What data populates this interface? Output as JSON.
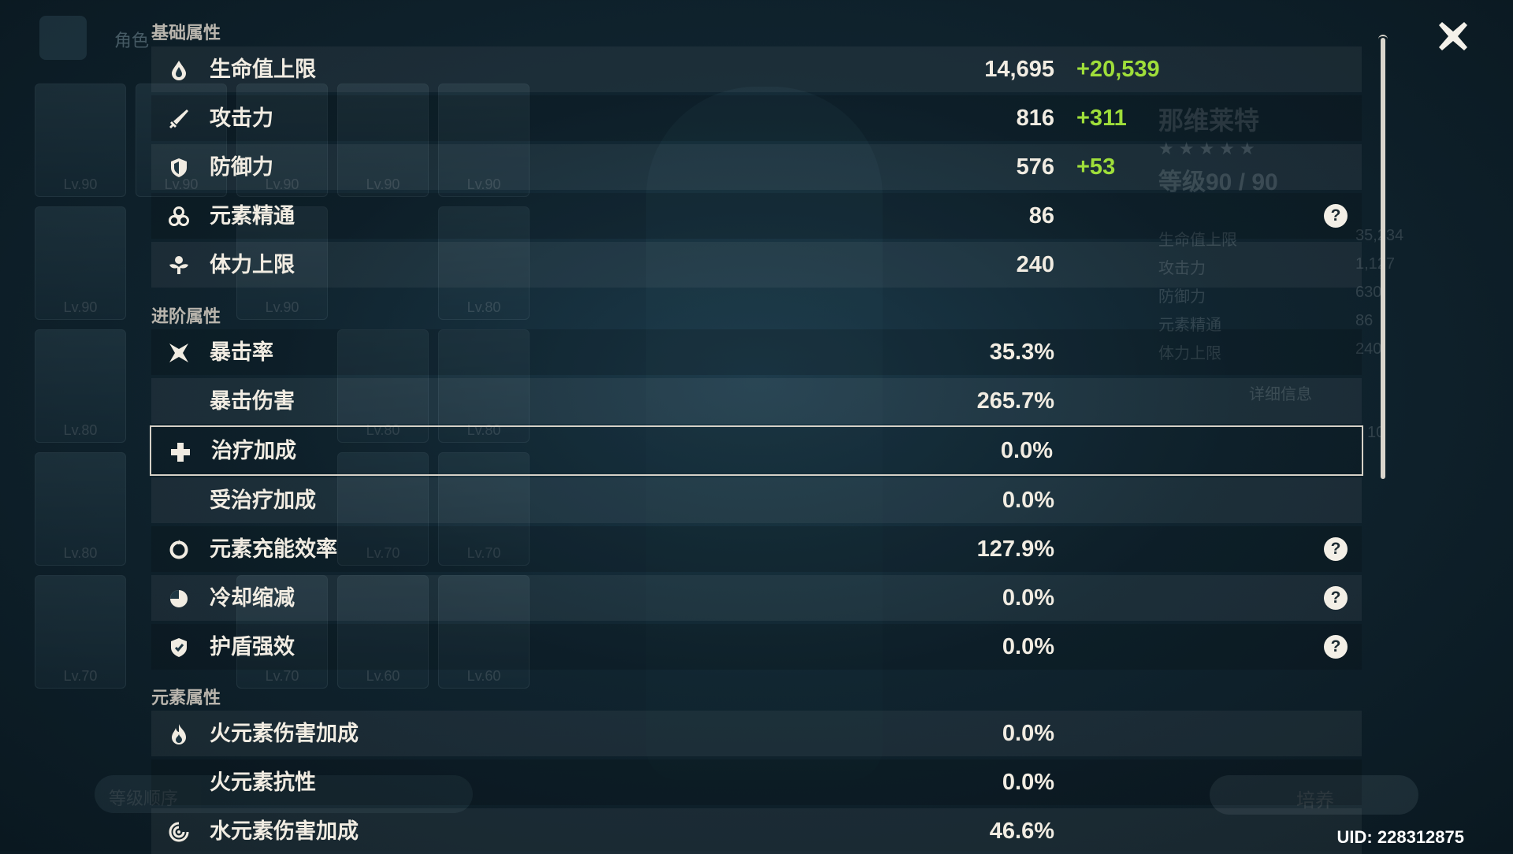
{
  "header": {
    "faded_tab": "角色"
  },
  "background": {
    "character_name": "那维莱特",
    "stars": "★★★★★",
    "level_text": "等级90 / 90",
    "stat_labels": [
      "生命值上限",
      "攻击力",
      "防御力",
      "元素精通",
      "体力上限"
    ],
    "stat_values": [
      "35,234",
      "1,127",
      "630",
      "86",
      "240"
    ],
    "details_label": "详细信息",
    "constellation_value": "10",
    "card_levels": [
      "Lv.90",
      "Lv.90",
      "Lv.90",
      "Lv.90",
      "Lv.90",
      "Lv.90",
      "Lv.90",
      "Lv.80",
      "Lv.80",
      "Lv.80",
      "Lv.80",
      "Lv.80",
      "Lv.80",
      "Lv.70",
      "Lv.70",
      "Lv.70",
      "Lv.70",
      "Lv.60",
      "Lv.60"
    ],
    "sort_label": "等级顺序",
    "develop_label": "培养"
  },
  "sections": {
    "base": "基础属性",
    "advanced": "进阶属性",
    "elemental": "元素属性"
  },
  "stats": [
    {
      "label": "生命值上限",
      "value": "14,695",
      "bonus": "+20,539",
      "icon": "hp-droplet-icon",
      "help": false
    },
    {
      "label": "攻击力",
      "value": "816",
      "bonus": "+311",
      "icon": "sword-icon",
      "help": false
    },
    {
      "label": "防御力",
      "value": "576",
      "bonus": "+53",
      "icon": "shield-icon",
      "help": false
    },
    {
      "label": "元素精通",
      "value": "86",
      "bonus": "",
      "icon": "elemental-mastery-icon",
      "help": true
    },
    {
      "label": "体力上限",
      "value": "240",
      "bonus": "",
      "icon": "stamina-icon",
      "help": false
    },
    {
      "label": "暴击率",
      "value": "35.3%",
      "bonus": "",
      "icon": "crit-rate-icon",
      "help": false
    },
    {
      "label": "暴击伤害",
      "value": "265.7%",
      "bonus": "",
      "icon": "",
      "help": false
    },
    {
      "label": "治疗加成",
      "value": "0.0%",
      "bonus": "",
      "icon": "healing-cross-icon",
      "help": false
    },
    {
      "label": "受治疗加成",
      "value": "0.0%",
      "bonus": "",
      "icon": "",
      "help": false
    },
    {
      "label": "元素充能效率",
      "value": "127.9%",
      "bonus": "",
      "icon": "energy-recharge-icon",
      "help": true
    },
    {
      "label": "冷却缩减",
      "value": "0.0%",
      "bonus": "",
      "icon": "cooldown-icon",
      "help": true
    },
    {
      "label": "护盾强效",
      "value": "0.0%",
      "bonus": "",
      "icon": "shield-strength-icon",
      "help": true
    },
    {
      "label": "火元素伤害加成",
      "value": "0.0%",
      "bonus": "",
      "icon": "pyro-icon",
      "help": false
    },
    {
      "label": "火元素抗性",
      "value": "0.0%",
      "bonus": "",
      "icon": "",
      "help": false
    },
    {
      "label": "水元素伤害加成",
      "value": "46.6%",
      "bonus": "",
      "icon": "hydro-icon",
      "help": false
    }
  ],
  "help_glyph": "?",
  "uid": "UID: 228312875",
  "colors": {
    "bonus": "#9fde3a",
    "text": "#f1ece2",
    "section": "#b9b5ad"
  }
}
